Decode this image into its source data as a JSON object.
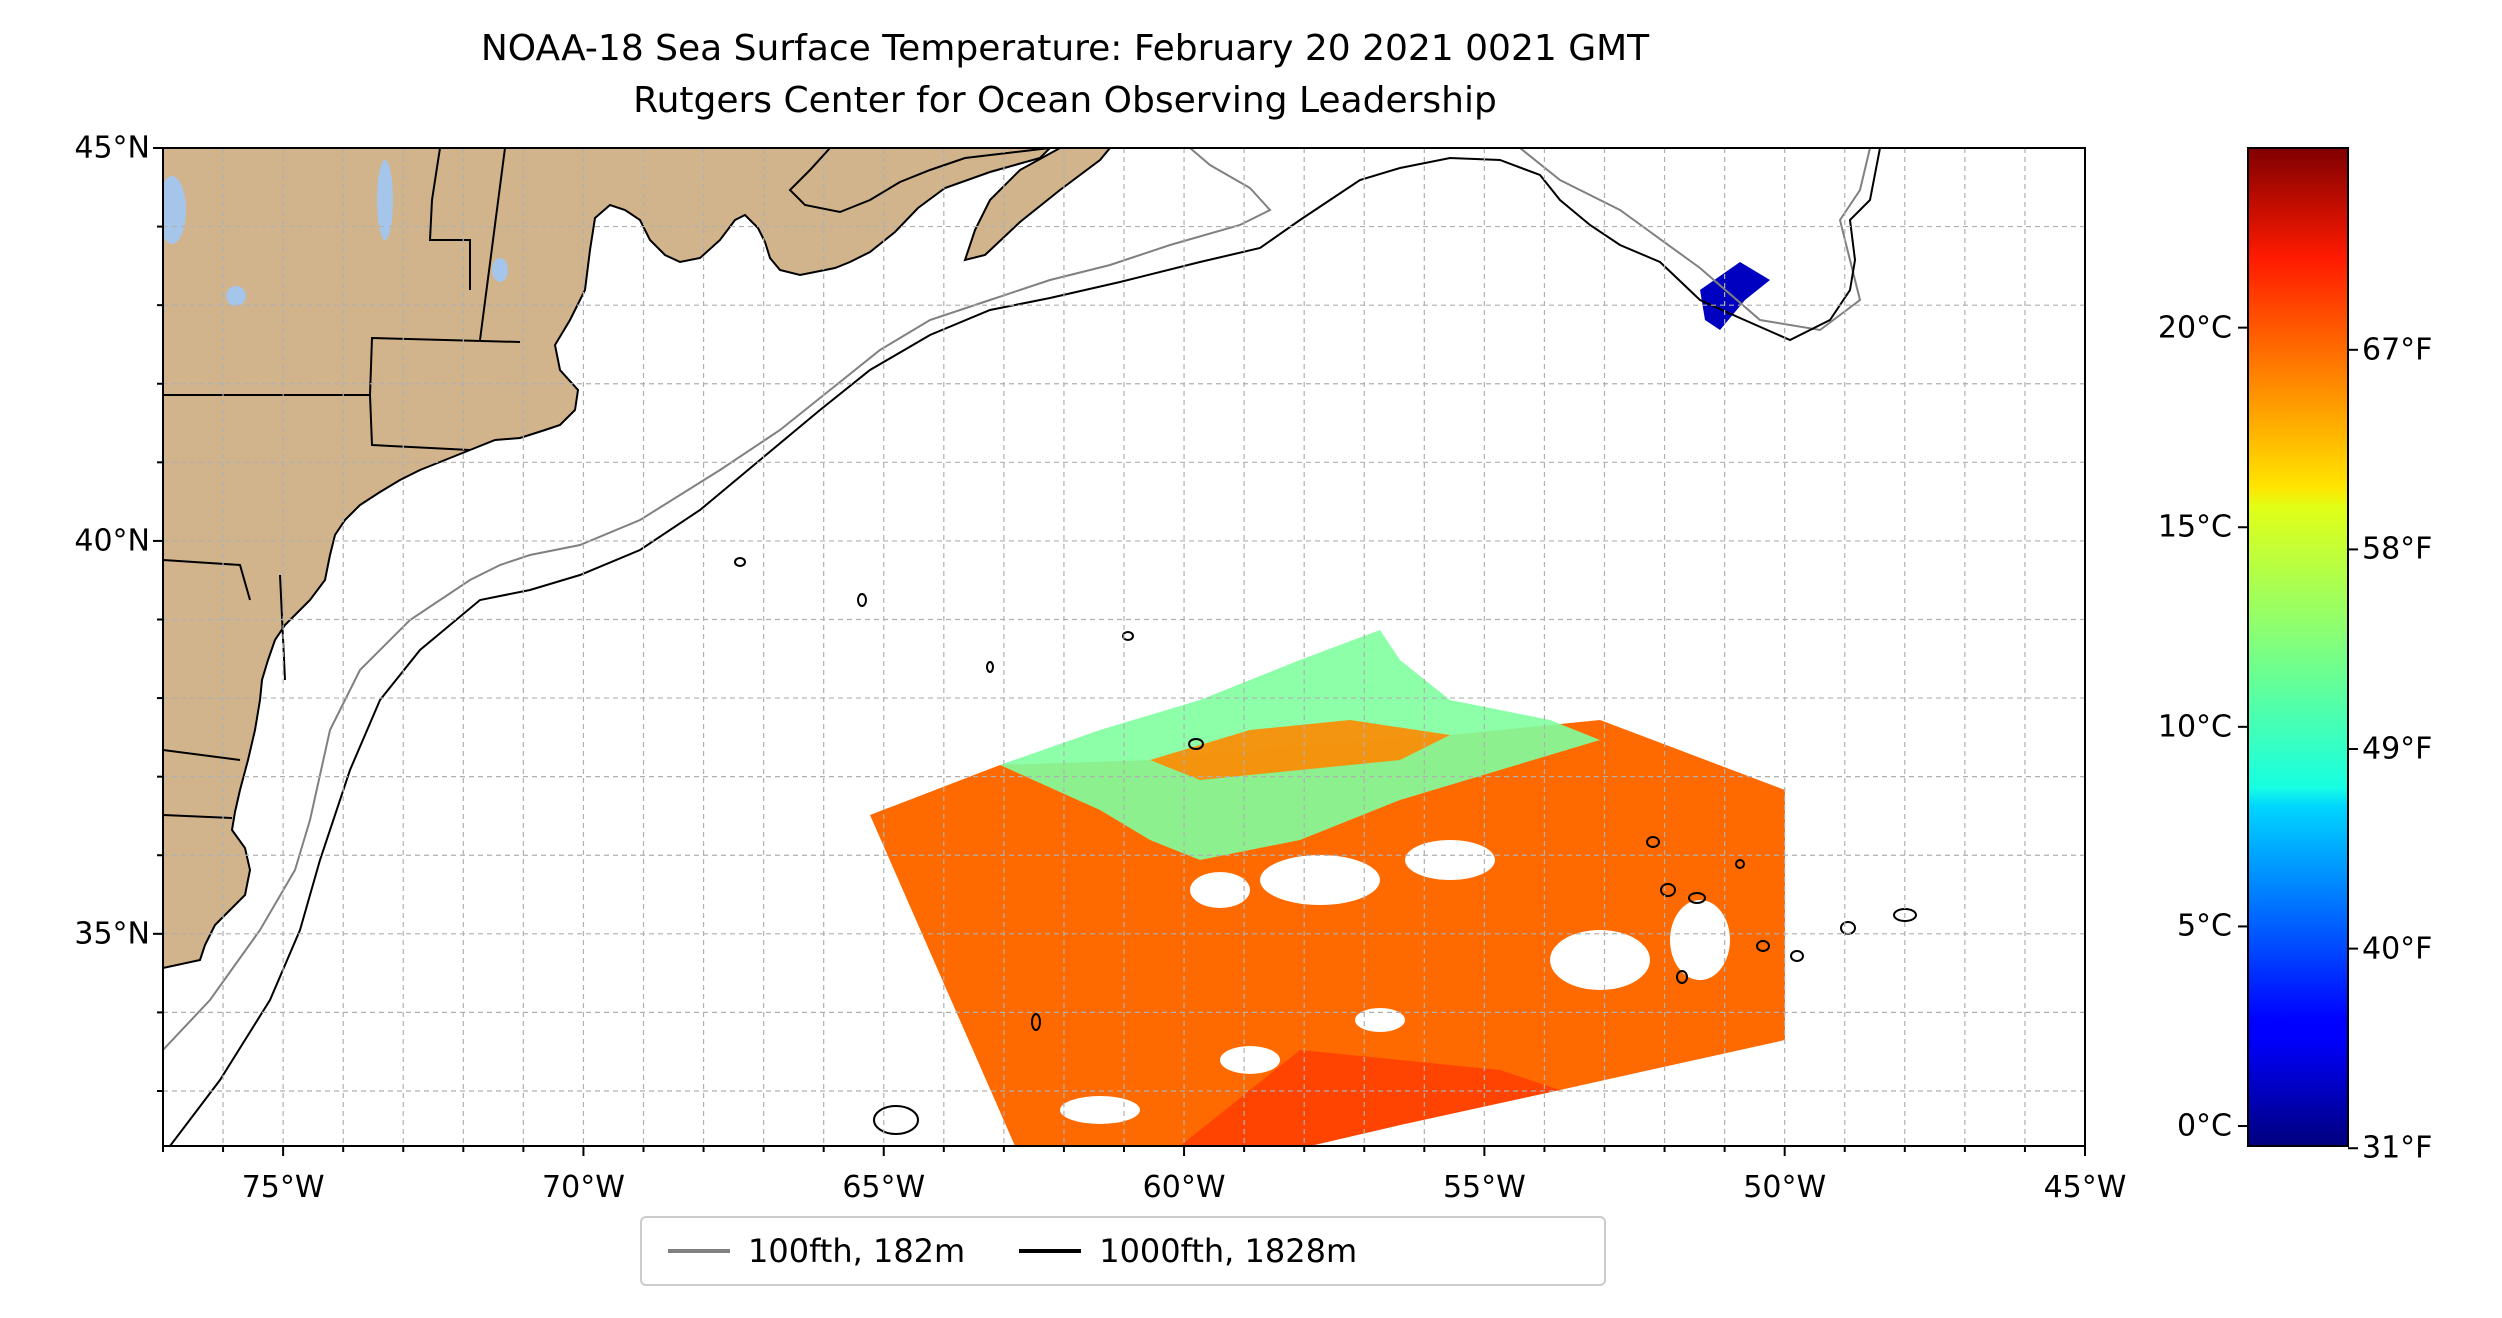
{
  "title": {
    "line1": "NOAA-18 Sea Surface Temperature: February 20 2021 0021 GMT",
    "line2": "Rutgers Center for Ocean Observing Leadership"
  },
  "map": {
    "lon_range": [
      -77,
      -45
    ],
    "lat_range": [
      32.3,
      45
    ],
    "lon_ticks": [
      "75°W",
      "70°W",
      "65°W",
      "60°W",
      "55°W",
      "50°W",
      "45°W"
    ],
    "lon_tick_values": [
      -75,
      -70,
      -65,
      -60,
      -55,
      -50,
      -45
    ],
    "lat_ticks": [
      "45°N",
      "40°N",
      "35°N"
    ],
    "lat_tick_values": [
      45,
      40,
      35
    ],
    "gridlines": true,
    "land_color": "#d2b48c",
    "lake_color": "#a6c5ea"
  },
  "colorbar": {
    "celsius_ticks": [
      "20°C",
      "15°C",
      "10°C",
      "5°C",
      "0°C"
    ],
    "celsius_values": [
      20,
      15,
      10,
      5,
      0
    ],
    "fahrenheit_ticks": [
      "67°F",
      "58°F",
      "49°F",
      "40°F",
      "31°F"
    ],
    "range_c": [
      -0.5,
      24.5
    ],
    "colormap": "jet"
  },
  "legend": {
    "items": [
      {
        "label": "100fth, 182m",
        "color": "#808080"
      },
      {
        "label": "1000fth, 1828m",
        "color": "#000000"
      }
    ]
  }
}
